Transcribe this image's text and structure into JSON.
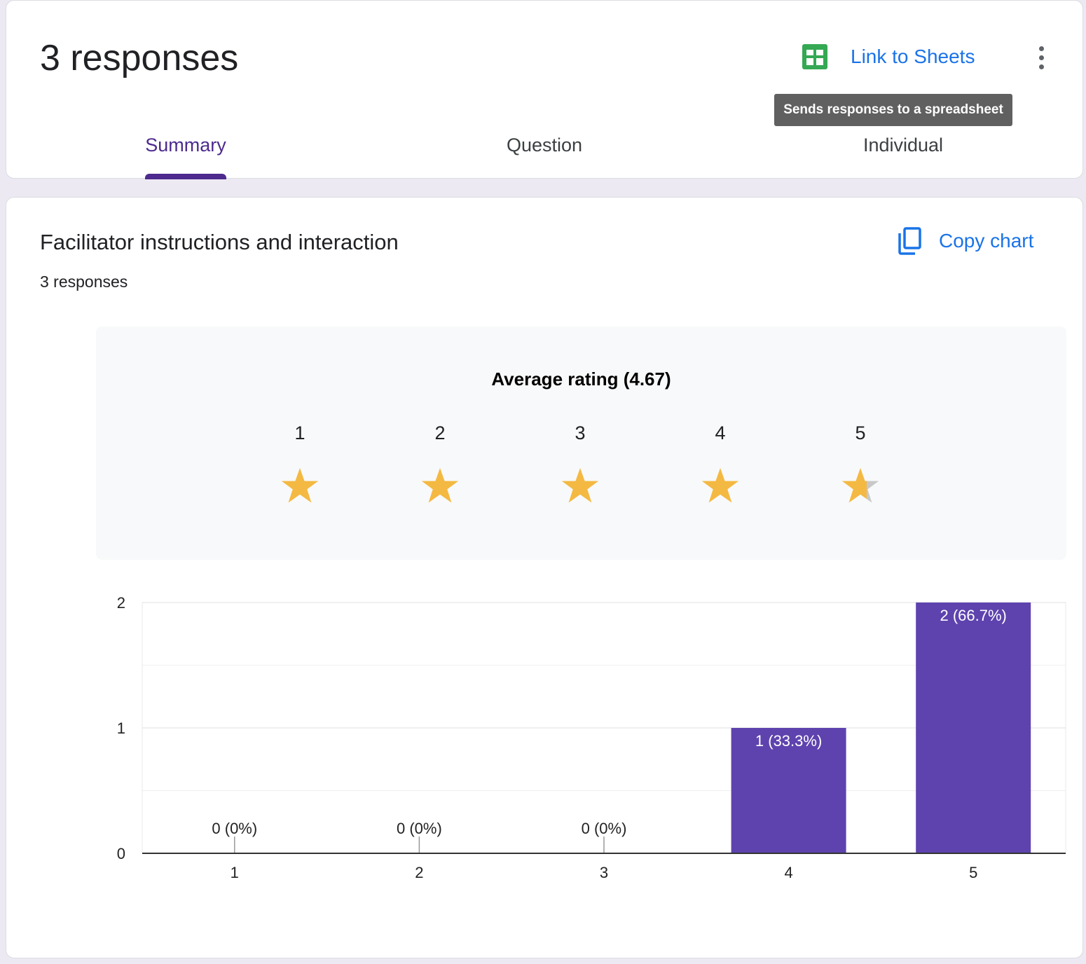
{
  "header": {
    "title": "3 responses",
    "link_to_sheets": "Link to Sheets",
    "more_options_icon": "more-vert-icon",
    "sheets_icon": "google-sheets-icon",
    "tooltip": "Sends responses to a spreadsheet"
  },
  "tabs": [
    {
      "label": "Summary",
      "active": true
    },
    {
      "label": "Question",
      "active": false
    },
    {
      "label": "Individual",
      "active": false
    }
  ],
  "question": {
    "title": "Facilitator instructions and interaction",
    "response_count": "3 responses",
    "copy_chart_label": "Copy chart",
    "copy_icon": "copy-icon"
  },
  "rating": {
    "average_label": "Average rating (4.67)",
    "average": 4.67,
    "scale": [
      "1",
      "2",
      "3",
      "4",
      "5"
    ]
  },
  "colors": {
    "accent": "#4e2a8e",
    "bar": "#5e43ae",
    "star": "#f4b942",
    "star_empty": "#c8c8c8",
    "link": "#1a73e8",
    "sheets_green": "#34a853"
  },
  "chart_data": {
    "type": "bar",
    "categories": [
      "1",
      "2",
      "3",
      "4",
      "5"
    ],
    "values": [
      0,
      0,
      0,
      1,
      2
    ],
    "labels": [
      "0 (0%)",
      "0 (0%)",
      "0 (0%)",
      "1 (33.3%)",
      "2 (66.7%)"
    ],
    "yticks": [
      "0",
      "1",
      "2"
    ],
    "ylim": [
      0,
      2
    ],
    "xlabel": "",
    "ylabel": "",
    "grid": true
  }
}
